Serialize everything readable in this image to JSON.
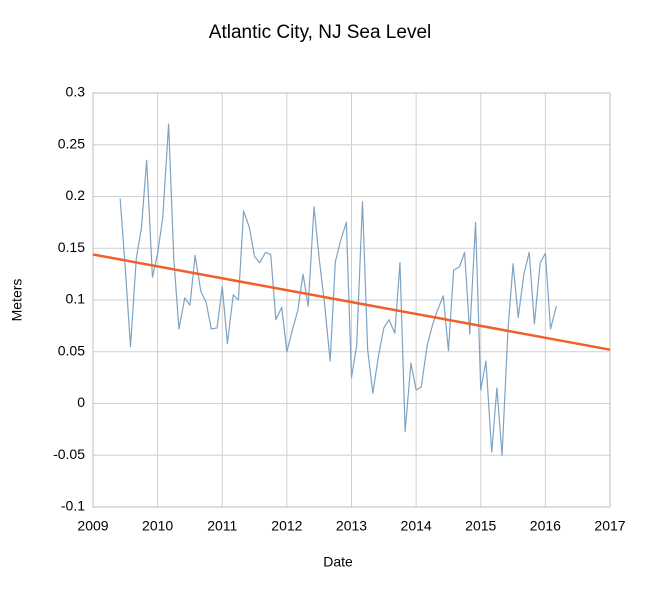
{
  "chart_data": {
    "type": "line",
    "title": "Atlantic City, NJ Sea Level",
    "xlabel": "Date",
    "ylabel": "Meters",
    "xlim": [
      2009,
      2017
    ],
    "xticks": [
      2009,
      2010,
      2011,
      2012,
      2013,
      2014,
      2015,
      2016,
      2017
    ],
    "ylim": [
      -0.1,
      0.3
    ],
    "yticks": [
      -0.1,
      -0.05,
      0,
      0.05,
      0.1,
      0.15,
      0.2,
      0.25,
      0.3
    ],
    "grid": true,
    "series": [
      {
        "color": "#7ea3c3",
        "width": 1.2,
        "x": [
          2009.42,
          2009.5,
          2009.58,
          2009.67,
          2009.75,
          2009.83,
          2009.92,
          2010.0,
          2010.08,
          2010.17,
          2010.25,
          2010.33,
          2010.42,
          2010.5,
          2010.58,
          2010.67,
          2010.75,
          2010.83,
          2010.92,
          2011.0,
          2011.08,
          2011.17,
          2011.25,
          2011.33,
          2011.42,
          2011.5,
          2011.58,
          2011.67,
          2011.75,
          2011.83,
          2011.92,
          2012.0,
          2012.08,
          2012.17,
          2012.25,
          2012.33,
          2012.42,
          2012.5,
          2012.58,
          2012.67,
          2012.75,
          2012.83,
          2012.92,
          2013.0,
          2013.08,
          2013.17,
          2013.25,
          2013.33,
          2013.42,
          2013.5,
          2013.58,
          2013.67,
          2013.75,
          2013.83,
          2013.92,
          2014.0,
          2014.08,
          2014.17,
          2014.25,
          2014.33,
          2014.42,
          2014.5,
          2014.58,
          2014.67,
          2014.75,
          2014.83,
          2014.92,
          2015.0,
          2015.08,
          2015.17,
          2015.25,
          2015.33,
          2015.42,
          2015.5,
          2015.58,
          2015.67,
          2015.75,
          2015.83,
          2015.92,
          2016.0,
          2016.08,
          2016.17
        ],
        "values": [
          0.198,
          0.13,
          0.055,
          0.14,
          0.17,
          0.235,
          0.122,
          0.145,
          0.18,
          0.27,
          0.14,
          0.072,
          0.102,
          0.095,
          0.143,
          0.108,
          0.098,
          0.072,
          0.073,
          0.113,
          0.058,
          0.105,
          0.1,
          0.186,
          0.17,
          0.142,
          0.136,
          0.146,
          0.144,
          0.081,
          0.093,
          0.05,
          0.07,
          0.09,
          0.125,
          0.094,
          0.19,
          0.14,
          0.098,
          0.041,
          0.137,
          0.157,
          0.175,
          0.025,
          0.056,
          0.195,
          0.052,
          0.01,
          0.047,
          0.073,
          0.081,
          0.068,
          0.136,
          -0.027,
          0.039,
          0.013,
          0.016,
          0.056,
          0.075,
          0.09,
          0.104,
          0.051,
          0.129,
          0.132,
          0.146,
          0.067,
          0.175,
          0.013,
          0.041,
          -0.047,
          0.015,
          -0.05,
          0.07,
          0.135,
          0.083,
          0.126,
          0.146,
          0.077,
          0.136,
          0.145,
          0.072,
          0.094
        ]
      },
      {
        "color": "#f0602a",
        "width": 2.5,
        "x": [
          2009,
          2017
        ],
        "values": [
          0.144,
          0.052
        ]
      }
    ]
  }
}
